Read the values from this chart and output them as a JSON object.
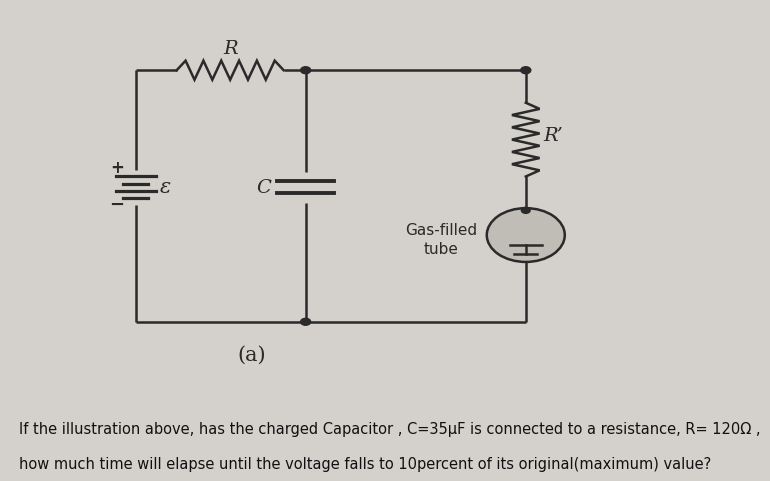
{
  "bg_color": "#d4d0cb",
  "line_color": "#2a2a2a",
  "line_width": 1.8,
  "title_label": "(a)",
  "question_line1": "If the illustration above, has the charged Capacitor , C=35μF is connected to a resistance, R= 120Ω ,",
  "question_line2": "how much time will elapse until the voltage falls to 10percent of its original(maximum) value?",
  "R_label": "R",
  "Rprime_label": "R’",
  "C_label": "C",
  "E_label": "ε",
  "gasfilled_label": "Gas-filled\ntube",
  "font_size_labels": 12,
  "font_size_question": 10.5,
  "font_size_title": 14
}
